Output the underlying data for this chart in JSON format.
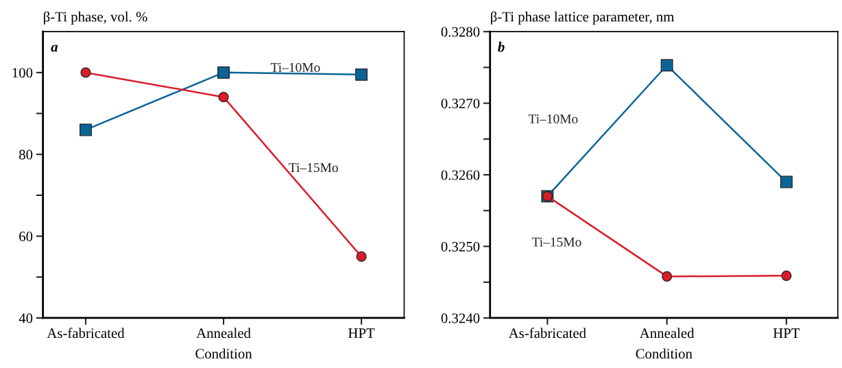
{
  "chart_data": [
    {
      "type": "line",
      "ylabel": "β-Ti phase, vol. %",
      "xlabel": "Condition",
      "annotations": [
        "a"
      ],
      "categories": [
        "As-fabricated",
        "Annealed",
        "HPT"
      ],
      "series": [
        {
          "name": "Ti–10Mo",
          "color": "#0b6497",
          "marker": "square",
          "values": [
            86,
            100,
            99.5
          ]
        },
        {
          "name": "Ti–15Mo",
          "color": "#d91c2a",
          "marker": "circle",
          "values": [
            100,
            94,
            55
          ]
        }
      ],
      "ylim": [
        40,
        110
      ],
      "yticks": [
        40,
        {
          "value": 50,
          "label": null
        },
        60,
        {
          "value": 70,
          "label": null
        },
        80,
        {
          "value": 90,
          "label": null
        },
        100
      ],
      "grid": false,
      "legend": false,
      "line_style": "solid"
    },
    {
      "type": "line",
      "ylabel": "β-Ti phase lattice parameter, nm",
      "xlabel": "Condition",
      "annotations": [
        "b"
      ],
      "categories": [
        "As-fabricated",
        "Annealed",
        "HPT"
      ],
      "series": [
        {
          "name": "Ti–10Mo",
          "color": "#0b6497",
          "marker": "square",
          "values": [
            0.3257,
            0.32753,
            0.3259
          ]
        },
        {
          "name": "Ti–15Mo",
          "color": "#d91c2a",
          "marker": "circle",
          "values": [
            0.3257,
            0.32458,
            0.32459
          ]
        }
      ],
      "ylim": [
        0.324,
        0.328
      ],
      "yticks": [
        {
          "value": 0.324,
          "label": "0.3240"
        },
        {
          "value": 0.3245,
          "label": null
        },
        {
          "value": 0.325,
          "label": "0.3250"
        },
        {
          "value": 0.3255,
          "label": null
        },
        {
          "value": 0.326,
          "label": "0.3260"
        },
        {
          "value": 0.3265,
          "label": null
        },
        {
          "value": 0.327,
          "label": "0.3270"
        },
        {
          "value": 0.3275,
          "label": null
        },
        {
          "value": 0.328,
          "label": "0.3280"
        }
      ],
      "grid": false,
      "legend": false,
      "line_style": "solid"
    }
  ]
}
